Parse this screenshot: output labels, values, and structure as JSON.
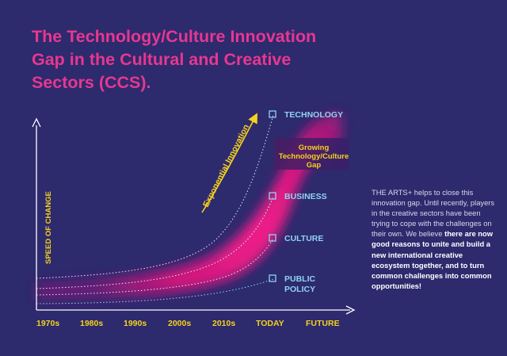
{
  "title": {
    "line1": "The Technology/Culture Innovation",
    "line2": "Gap in the Cultural and Creative",
    "line3": "Sectors (CCS)."
  },
  "axis": {
    "ylabel": "SPEED OF CHANGE",
    "x_ticks": [
      "1970s",
      "1980s",
      "1990s",
      "2000s",
      "2010s",
      "TODAY",
      "FUTURE"
    ]
  },
  "curves": {
    "exponential_label": "Exponential  Innovation",
    "gap_label": [
      "Growing",
      "Technology/Culture",
      "Gap"
    ]
  },
  "legend": [
    {
      "label": "TECHNOLOGY"
    },
    {
      "label": "BUSINESS"
    },
    {
      "label": "CULTURE"
    },
    {
      "label": "PUBLIC",
      "label2": "POLICY"
    }
  ],
  "description": {
    "intro": "THE ARTS+ helps to close this innovation gap. Until recently, players in the creative sectors have been trying to cope with the challenges on their own. We believe",
    "bold": "there are now good reasons to unite and build a new international creative ecosystem together, and to turn common challenges into common opportunities!"
  },
  "colors": {
    "background": "#2d2a6e",
    "magenta": "#e8378f",
    "yellow": "#f5d21c",
    "cyan": "#8fd3f0"
  }
}
